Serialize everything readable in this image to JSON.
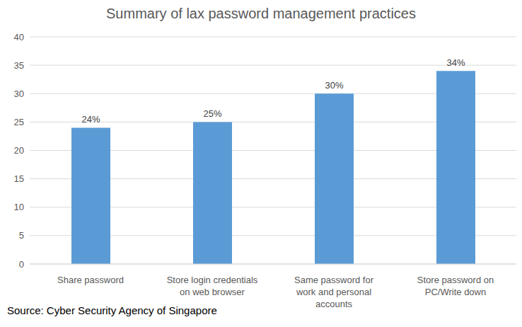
{
  "chart_data": {
    "type": "bar",
    "title": "Summary of lax password management practices",
    "annotations": [
      "Source: Cyber Security Agency of Singapore"
    ],
    "categories": [
      "Share password",
      "Store login credentials on web browser",
      "Same password for work and personal accounts",
      "Store password on PC/Write down"
    ],
    "values": [
      24,
      25,
      30,
      34
    ],
    "value_labels": [
      "24%",
      "25%",
      "30%",
      "34%"
    ],
    "color": "#5b9bd5",
    "ylim": [
      0,
      40
    ],
    "yticks": [
      0,
      5,
      10,
      15,
      20,
      25,
      30,
      35,
      40
    ],
    "grid": true,
    "data_labels": true
  }
}
